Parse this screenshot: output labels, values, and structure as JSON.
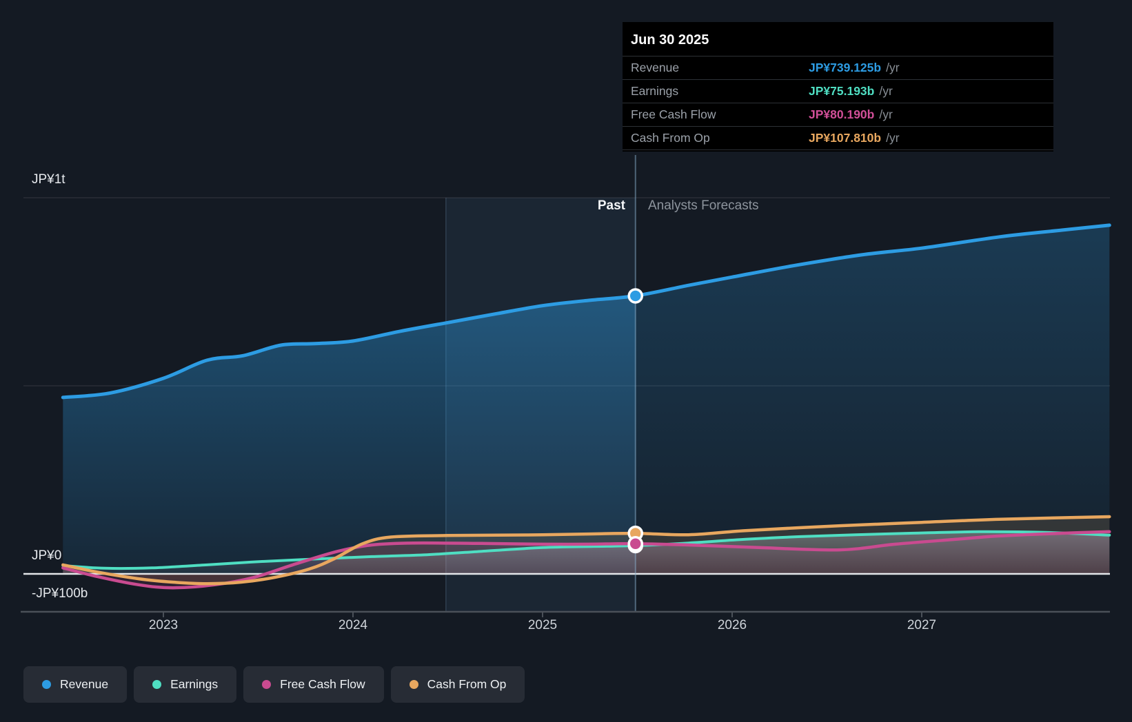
{
  "page": {
    "background": "#141a23"
  },
  "tooltip": {
    "date": "Jun 30 2025",
    "rows": [
      {
        "label": "Revenue",
        "value": "JP¥739.125b",
        "suffix": "/yr",
        "color": "#2d9ce3"
      },
      {
        "label": "Earnings",
        "value": "JP¥75.193b",
        "suffix": "/yr",
        "color": "#4fdec2"
      },
      {
        "label": "Free Cash Flow",
        "value": "JP¥80.190b",
        "suffix": "/yr",
        "color": "#d14f98"
      },
      {
        "label": "Cash From Op",
        "value": "JP¥107.810b",
        "suffix": "/yr",
        "color": "#e8a75f"
      }
    ]
  },
  "axis": {
    "y_labels": [
      {
        "text": "JP¥1t",
        "value": 1000
      },
      {
        "text": "JP¥0",
        "value": 0
      },
      {
        "text": "-JP¥100b",
        "value": -100
      }
    ],
    "x_ticks": [
      2023,
      2024,
      2025,
      2026,
      2027
    ]
  },
  "annotations": {
    "past": "Past",
    "forecast": "Analysts Forecasts"
  },
  "legend": [
    {
      "label": "Revenue",
      "color": "#2d9ce3"
    },
    {
      "label": "Earnings",
      "color": "#4fdec2"
    },
    {
      "label": "Free Cash Flow",
      "color": "#c94b90"
    },
    {
      "label": "Cash From Op",
      "color": "#e8a75f"
    }
  ],
  "chart_data": {
    "type": "area",
    "x_unit": "year (decimal)",
    "y_unit": "JP¥ billions per year",
    "ylim": [
      -100,
      1000
    ],
    "grid_values": [
      1000,
      500,
      0,
      -100
    ],
    "divider_year": 2025.49,
    "highlight_band": [
      2024.49,
      2025.49
    ],
    "legend_position": "bottom",
    "series": [
      {
        "name": "Revenue",
        "color": "#2d9ce3",
        "marker_value": 739.125,
        "points": [
          [
            2022.47,
            469
          ],
          [
            2022.72,
            481
          ],
          [
            2023.0,
            520
          ],
          [
            2023.23,
            568
          ],
          [
            2023.42,
            580
          ],
          [
            2023.62,
            608
          ],
          [
            2023.8,
            612
          ],
          [
            2024.0,
            619
          ],
          [
            2024.25,
            645
          ],
          [
            2024.5,
            668
          ],
          [
            2024.76,
            692
          ],
          [
            2025.0,
            713
          ],
          [
            2025.24,
            727
          ],
          [
            2025.49,
            739.125
          ],
          [
            2025.77,
            767
          ],
          [
            2026.0,
            789
          ],
          [
            2026.32,
            819
          ],
          [
            2026.68,
            848
          ],
          [
            2027.0,
            866
          ],
          [
            2027.41,
            896
          ],
          [
            2027.74,
            914
          ],
          [
            2027.99,
            927
          ]
        ]
      },
      {
        "name": "Earnings",
        "color": "#4fdec2",
        "marker_value": 75.193,
        "points": [
          [
            2022.47,
            22
          ],
          [
            2022.69,
            15
          ],
          [
            2022.94,
            16
          ],
          [
            2023.23,
            24
          ],
          [
            2023.52,
            33
          ],
          [
            2023.81,
            40
          ],
          [
            2024.1,
            46
          ],
          [
            2024.39,
            51
          ],
          [
            2024.68,
            60
          ],
          [
            2025.0,
            70
          ],
          [
            2025.27,
            73
          ],
          [
            2025.49,
            75.193
          ],
          [
            2025.77,
            82
          ],
          [
            2026.07,
            92
          ],
          [
            2026.36,
            99
          ],
          [
            2026.65,
            104
          ],
          [
            2026.94,
            108
          ],
          [
            2027.3,
            112
          ],
          [
            2027.67,
            110
          ],
          [
            2027.99,
            103
          ]
        ]
      },
      {
        "name": "Free Cash Flow",
        "color": "#c94b90",
        "marker_value": 80.19,
        "points": [
          [
            2022.47,
            16
          ],
          [
            2022.65,
            -7
          ],
          [
            2022.87,
            -29
          ],
          [
            2023.05,
            -37
          ],
          [
            2023.27,
            -29
          ],
          [
            2023.48,
            -9
          ],
          [
            2023.7,
            27
          ],
          [
            2023.92,
            60
          ],
          [
            2024.1,
            77
          ],
          [
            2024.32,
            82
          ],
          [
            2024.68,
            81
          ],
          [
            2025.0,
            79
          ],
          [
            2025.23,
            79
          ],
          [
            2025.49,
            80.19
          ],
          [
            2025.77,
            77
          ],
          [
            2026.14,
            70
          ],
          [
            2026.57,
            64
          ],
          [
            2026.86,
            79
          ],
          [
            2027.18,
            92
          ],
          [
            2027.41,
            101
          ],
          [
            2027.74,
            108
          ],
          [
            2027.99,
            112
          ]
        ]
      },
      {
        "name": "Cash From Op",
        "color": "#e8a75f",
        "marker_value": 107.81,
        "points": [
          [
            2022.47,
            24
          ],
          [
            2022.65,
            5
          ],
          [
            2022.87,
            -13
          ],
          [
            2023.05,
            -22
          ],
          [
            2023.23,
            -26
          ],
          [
            2023.41,
            -22
          ],
          [
            2023.59,
            -9
          ],
          [
            2023.77,
            13
          ],
          [
            2023.9,
            40
          ],
          [
            2024.05,
            80
          ],
          [
            2024.2,
            98
          ],
          [
            2024.5,
            102
          ],
          [
            2024.76,
            103
          ],
          [
            2025.0,
            104
          ],
          [
            2025.24,
            106
          ],
          [
            2025.49,
            107.81
          ],
          [
            2025.77,
            104
          ],
          [
            2026.07,
            115
          ],
          [
            2026.57,
            128
          ],
          [
            2027.0,
            137
          ],
          [
            2027.41,
            145
          ],
          [
            2027.99,
            152
          ]
        ]
      }
    ]
  }
}
